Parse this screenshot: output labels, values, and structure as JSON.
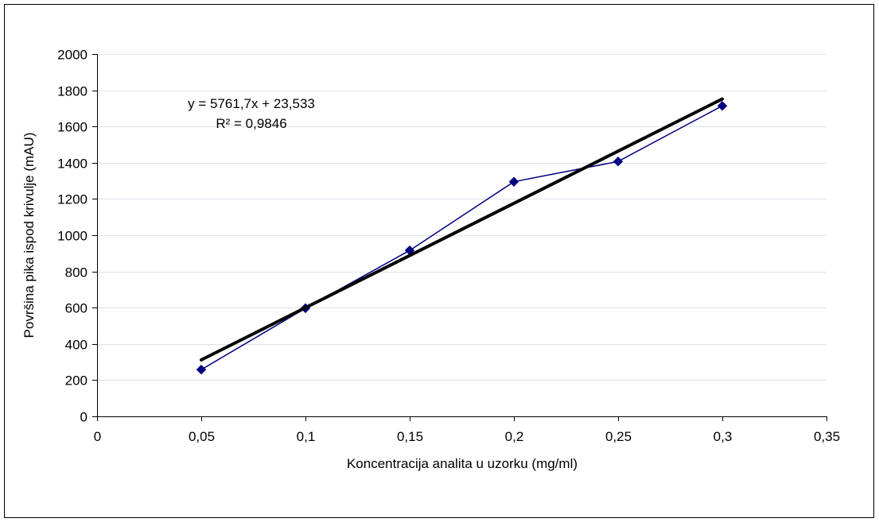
{
  "chart_data": {
    "type": "scatter",
    "title": "",
    "xlabel": "Koncentracija analita u uzorku (mg/ml)",
    "ylabel": "Površina pika ispod krivulje (mAU)",
    "xlim": [
      0,
      0.35
    ],
    "ylim": [
      0,
      2000
    ],
    "x_ticks": [
      0,
      0.05,
      0.1,
      0.15,
      0.2,
      0.25,
      0.3,
      0.35
    ],
    "x_tick_labels": [
      "0",
      "0,05",
      "0,1",
      "0,15",
      "0,2",
      "0,25",
      "0,3",
      "0,35"
    ],
    "y_ticks": [
      0,
      200,
      400,
      600,
      800,
      1000,
      1200,
      1400,
      1600,
      1800,
      2000
    ],
    "y_tick_labels": [
      "0",
      "200",
      "400",
      "600",
      "800",
      "1000",
      "1200",
      "1400",
      "1600",
      "1800",
      "2000"
    ],
    "grid": true,
    "legend": "none",
    "series": [
      {
        "x": [
          0.05,
          0.1,
          0.15,
          0.2,
          0.25,
          0.3
        ],
        "y": [
          258,
          597,
          916,
          1295,
          1407,
          1714
        ],
        "color": "#000080",
        "marker": "diamond"
      }
    ],
    "trendline": {
      "type": "linear",
      "slope": 5761.7,
      "intercept": 23.533,
      "x_range": [
        0.05,
        0.3
      ],
      "color": "#000000",
      "equation": "y = 5761,7x + 23,533",
      "r_squared": "R² = 0,9846"
    }
  }
}
